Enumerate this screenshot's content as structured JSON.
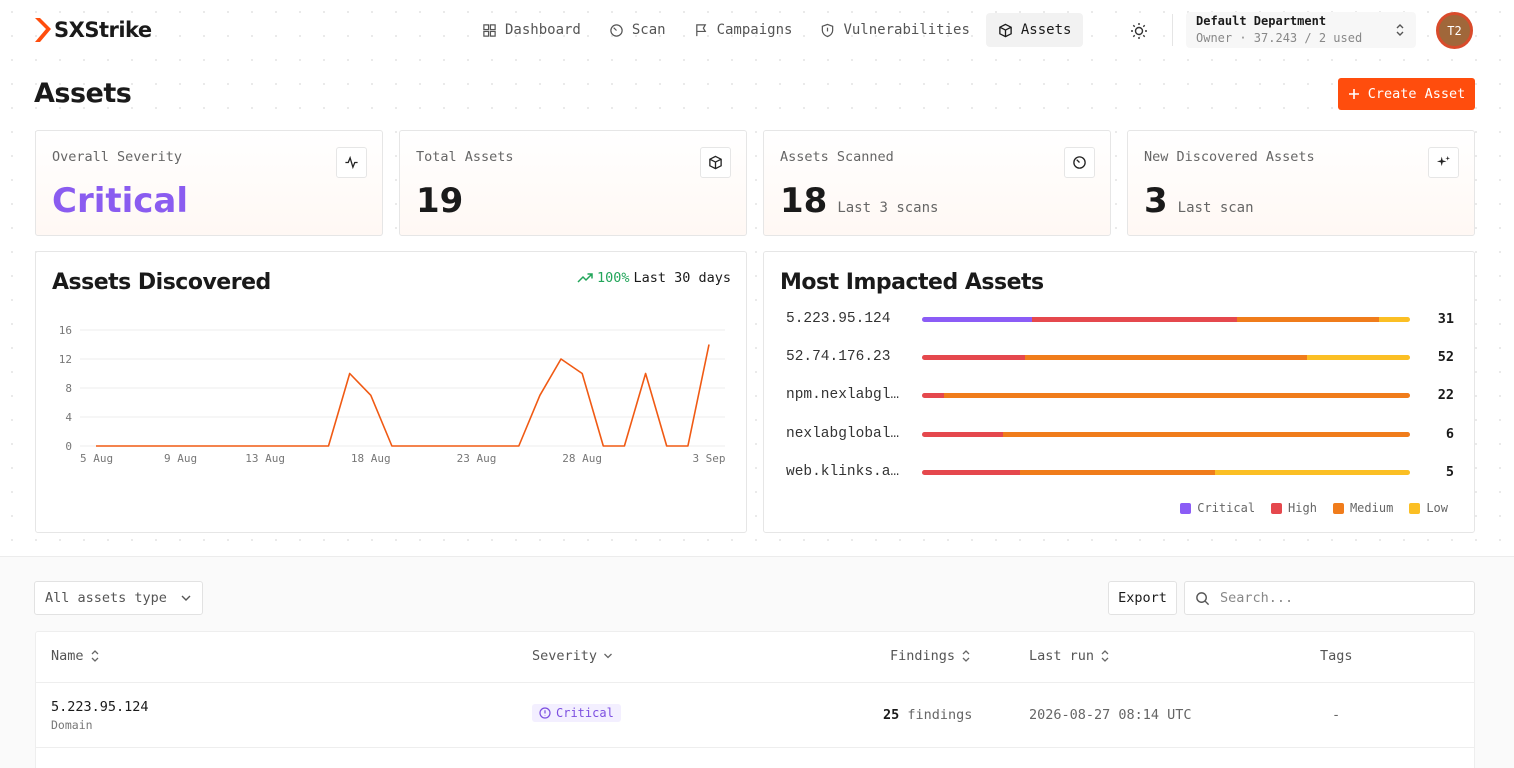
{
  "app": {
    "name": "SXStrike",
    "brand_color": "#ff4d0d"
  },
  "nav": {
    "items": [
      {
        "label": "Dashboard",
        "icon": "grid-icon"
      },
      {
        "label": "Scan",
        "icon": "scan-icon"
      },
      {
        "label": "Campaigns",
        "icon": "flag-icon"
      },
      {
        "label": "Vulnerabilities",
        "icon": "shield-icon"
      },
      {
        "label": "Assets",
        "icon": "box-icon",
        "active": true
      }
    ]
  },
  "department": {
    "name": "Default Department",
    "sub": "Owner · 37.243 / 2 used"
  },
  "user": {
    "initials": "T2"
  },
  "page": {
    "title": "Assets",
    "create_label": "Create Asset"
  },
  "stats": [
    {
      "label": "Overall Severity",
      "value": "Critical",
      "sub": "",
      "icon": "activity-icon"
    },
    {
      "label": "Total Assets",
      "value": "19",
      "sub": "",
      "icon": "box-icon"
    },
    {
      "label": "Assets Scanned",
      "value": "18",
      "sub": "Last 3 scans",
      "icon": "scan-icon"
    },
    {
      "label": "New Discovered Assets",
      "value": "3",
      "sub": "Last scan",
      "icon": "sparkle-icon"
    }
  ],
  "discovered": {
    "title": "Assets Discovered",
    "trend_pct": "100%",
    "trend_label": "Last 30 days"
  },
  "chart_data": {
    "type": "line",
    "title": "Assets Discovered",
    "xlabel": "",
    "ylabel": "",
    "ylim": [
      0,
      16
    ],
    "yticks": [
      "0",
      "4",
      "8",
      "12",
      "16"
    ],
    "xtick_labels": [
      "5 Aug",
      "9 Aug",
      "13 Aug",
      "18 Aug",
      "23 Aug",
      "28 Aug",
      "3 Sep"
    ],
    "xtick_index": [
      0,
      4,
      8,
      13,
      18,
      23,
      29
    ],
    "x": [
      "5 Aug",
      "6 Aug",
      "7 Aug",
      "8 Aug",
      "9 Aug",
      "10 Aug",
      "11 Aug",
      "12 Aug",
      "13 Aug",
      "14 Aug",
      "15 Aug",
      "16 Aug",
      "17 Aug",
      "18 Aug",
      "19 Aug",
      "20 Aug",
      "21 Aug",
      "22 Aug",
      "23 Aug",
      "24 Aug",
      "25 Aug",
      "26 Aug",
      "27 Aug",
      "28 Aug",
      "29 Aug",
      "30 Aug",
      "31 Aug",
      "1 Sep",
      "2 Sep",
      "3 Sep"
    ],
    "values": [
      0,
      0,
      0,
      0,
      0,
      0,
      0,
      0,
      0,
      0,
      0,
      0,
      10,
      7,
      0,
      0,
      0,
      0,
      0,
      0,
      0,
      7,
      12,
      10,
      0,
      0,
      10,
      0,
      0,
      14
    ],
    "color": "#f05a14",
    "grid": true
  },
  "impacted": {
    "title": "Most Impacted Assets",
    "series_names": [
      "Critical",
      "High",
      "Medium",
      "Low"
    ],
    "colors": [
      "#8b5cf6",
      "#e5484d",
      "#f07c1b",
      "#fbbf24"
    ],
    "assets": [
      {
        "name": "5.223.95.124",
        "total": "31",
        "counts": [
          7,
          13,
          9,
          2
        ]
      },
      {
        "name": "52.74.176.23",
        "total": "52",
        "counts": [
          0,
          11,
          30,
          11
        ]
      },
      {
        "name": "npm.nexlabgl…",
        "total": "22",
        "counts": [
          0,
          1,
          21,
          0
        ]
      },
      {
        "name": "nexlabglobal…",
        "total": "6",
        "counts": [
          0,
          1,
          5,
          0
        ]
      },
      {
        "name": "web.klinks.a…",
        "total": "5",
        "counts": [
          0,
          1,
          2,
          2
        ]
      }
    ]
  },
  "toolbar": {
    "filter_label": "All assets type",
    "export_label": "Export",
    "search_placeholder": "Search..."
  },
  "table": {
    "columns": {
      "name": "Name",
      "severity": "Severity",
      "findings": "Findings",
      "last_run": "Last run",
      "tags": "Tags"
    },
    "rows": [
      {
        "name": "5.223.95.124",
        "type": "Domain",
        "severity": "Critical",
        "findings_count": "25",
        "findings_word": "findings",
        "last_run": "2026-08-27 08:14 UTC",
        "tags": "-"
      }
    ]
  }
}
